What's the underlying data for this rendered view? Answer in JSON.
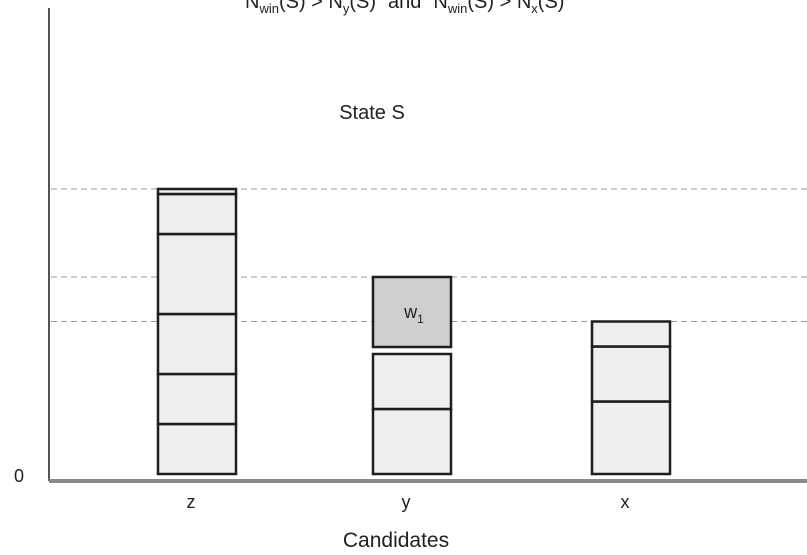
{
  "title": {
    "line1_base": "N",
    "line1_sub": "win",
    "line1_mid": "(S) > N",
    "line1_sub2": "y",
    "line1_end": "(S)",
    "and": "and",
    "line2_base": "N",
    "line2_sub": "win",
    "line2_mid": "(S) > N",
    "line2_sub2": "x",
    "line2_end": "(S)"
  },
  "state_label": "State S",
  "origin_label": "0",
  "xlabel": "Candidates",
  "candidates": [
    {
      "name": "z",
      "blocks": [
        1.0,
        1.0,
        1.2,
        1.6,
        0.8,
        0.1
      ]
    },
    {
      "name": "y",
      "blocks": [
        1.3,
        1.1
      ],
      "winner_block": 1.4,
      "winner_label": "w",
      "winner_sub": "1"
    },
    {
      "name": "x",
      "blocks": [
        1.45,
        1.1,
        0.5
      ]
    }
  ],
  "colors": {
    "block_fill": "#efefef",
    "winner_fill": "#cfcfcf",
    "block_stroke": "#1e1e1e",
    "guide": "#9a9a9a",
    "axis": "#555555"
  }
}
